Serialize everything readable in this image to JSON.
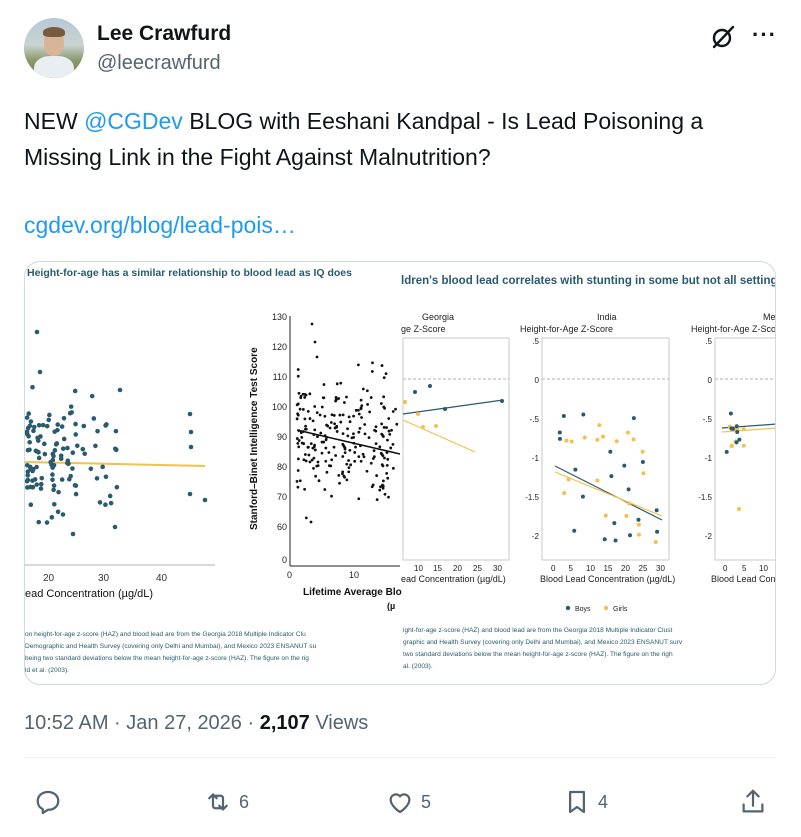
{
  "author": {
    "name": "Lee Crawfurd",
    "handle": "@leecrawfurd"
  },
  "tweet": {
    "text_before": "NEW ",
    "mention": "@CGDev",
    "text_after": " BLOG with Eeshani Kandpal - Is Lead Poisoning a Missing Link in the Fight Against Malnutrition?",
    "link": "cgdev.org/blog/lead-pois…"
  },
  "media": {
    "left_title": "Height-for-age has a similar relationship to blood lead as IQ does",
    "right_title": "ldren's blood lead correlates with stunting in some but not all settings",
    "left_xticks": [
      "20",
      "30",
      "40"
    ],
    "left_xlabel": "ead Concentration (µg/dL)",
    "iq_ylabel": "Stanford–Binet Intelligence Test Score",
    "iq_yticks": [
      "130",
      "120",
      "110",
      "100",
      "90",
      "80",
      "70",
      "60",
      "0"
    ],
    "iq_xticks": [
      "0",
      "10"
    ],
    "iq_xlabel": "Lifetime Average Blo",
    "iq_xlabel_unit": "(µ",
    "georgia_title": "Georgia",
    "georgia_ylabel": "ge Z-Score",
    "georgia_xticks": [
      "10",
      "15",
      "20",
      "25",
      "30"
    ],
    "georgia_xlabel": "ead Concentration (µg/dL)",
    "india_title": "India",
    "india_ylabel": "Height-for-Age Z-Score",
    "india_yticks": [
      ".5",
      "0",
      "-.5",
      "-1",
      "-1.5",
      "-2"
    ],
    "india_xticks": [
      "0",
      "5",
      "10",
      "15",
      "20",
      "25",
      "30"
    ],
    "india_xlabel": "Blood Lead Concentration (µg/dL)",
    "mexico_title": "Me",
    "mexico_ylabel": "Height-for-Age Z-Sco",
    "mexico_yticks": [
      ".5",
      "0",
      "-.5",
      "-1",
      "-1.5",
      "-2"
    ],
    "mexico_xticks": [
      "0",
      "5",
      "10"
    ],
    "mexico_xlabel": "Blood Lead Con",
    "legend_boys": "Boys",
    "legend_girls": "Girls",
    "left_notes": [
      "on height-for-age z-score (HAZ) and blood lead are from the Georgia 2018 Multiple Indicator Clu",
      "Demographic and Health Survey (covering only Delhi and Mumbai), and Mexico 2023 ENSANUT su",
      "being two standard deviations below the mean height-for-age z-score (HAZ). The figure on the rig",
      "ld et al. (2003)."
    ],
    "right_notes": [
      "ight-for-age z-score (HAZ) and blood lead are from the Georgia 2018 Multiple Indicator Clust",
      "graphic and Health Survey (covering only Delhi and Mumbai), and Mexico 2023 ENSANUT surv",
      "two standard deviations below the mean height-for-age z-score (HAZ). The figure on the righ",
      "al. (2003)."
    ],
    "colors": {
      "teal": "#2a5a6e",
      "gold": "#f2c14e",
      "black": "#111111"
    }
  },
  "meta": {
    "time": "10:52 AM · Jan 27, 2026 · ",
    "views_count": "2,107",
    "views_label": " Views"
  },
  "actions": {
    "reply_count": "",
    "retweet_count": "6",
    "like_count": "5",
    "bookmark_count": "4"
  },
  "icons": [
    "grok-icon",
    "more-icon",
    "reply-icon",
    "retweet-icon",
    "like-icon",
    "bookmark-icon",
    "share-icon"
  ]
}
